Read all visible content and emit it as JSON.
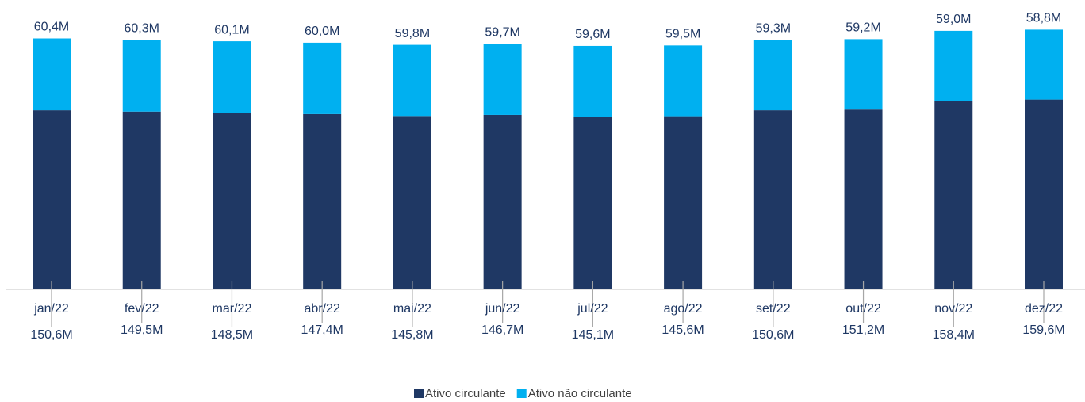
{
  "chart_data": {
    "type": "bar",
    "stacked": true,
    "categories": [
      "jan/22",
      "fev/22",
      "mar/22",
      "abr/22",
      "mai/22",
      "jun/22",
      "jul/22",
      "ago/22",
      "set/22",
      "out/22",
      "nov/22",
      "dez/22"
    ],
    "series": [
      {
        "name": "Ativo circulante",
        "color": "#1f3864",
        "values": [
          150.6,
          149.5,
          148.5,
          147.4,
          145.8,
          146.7,
          145.1,
          145.6,
          150.6,
          151.2,
          158.4,
          159.6
        ],
        "value_labels": [
          "150,6M",
          "149,5M",
          "148,5M",
          "147,4M",
          "145,8M",
          "146,7M",
          "145,1M",
          "145,6M",
          "150,6M",
          "151,2M",
          "158,4M",
          "159,6M"
        ]
      },
      {
        "name": "Ativo não circulante",
        "color": "#00b0f0",
        "values": [
          60.4,
          60.3,
          60.1,
          60.0,
          59.8,
          59.7,
          59.6,
          59.5,
          59.3,
          59.2,
          59.0,
          58.8
        ],
        "value_labels": [
          "60,4M",
          "60,3M",
          "60,1M",
          "60,0M",
          "59,8M",
          "59,7M",
          "59,6M",
          "59,5M",
          "59,3M",
          "59,2M",
          "59,0M",
          "58,8M"
        ]
      }
    ],
    "ylim": [
      0,
      240
    ],
    "legend": "bottom"
  }
}
